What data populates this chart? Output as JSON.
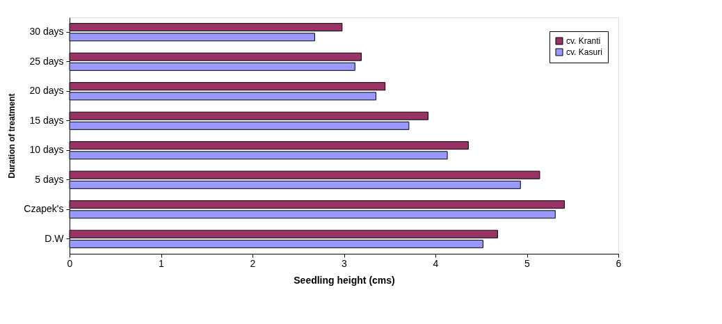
{
  "chart_data": {
    "type": "bar",
    "orientation": "horizontal",
    "xlabel": "Seedling height (cms)",
    "ylabel": "Duration of treatment",
    "categories": [
      "30 days",
      "25 days",
      "20 days",
      "15 days",
      "10 days",
      "5 days",
      "Czapek's",
      "D.W"
    ],
    "series": [
      {
        "name": "cv. Kranti",
        "color": "#993366",
        "values": [
          2.98,
          3.19,
          3.45,
          3.92,
          4.36,
          5.14,
          5.41,
          4.68
        ]
      },
      {
        "name": "cv. Kasuri",
        "color": "#9999ff",
        "values": [
          2.68,
          3.12,
          3.35,
          3.71,
          4.13,
          4.93,
          5.31,
          4.52
        ]
      }
    ],
    "xlim": [
      0,
      6
    ],
    "xticks": [
      0,
      1,
      2,
      3,
      4,
      5,
      6
    ],
    "grid": false,
    "legend": "top right"
  }
}
